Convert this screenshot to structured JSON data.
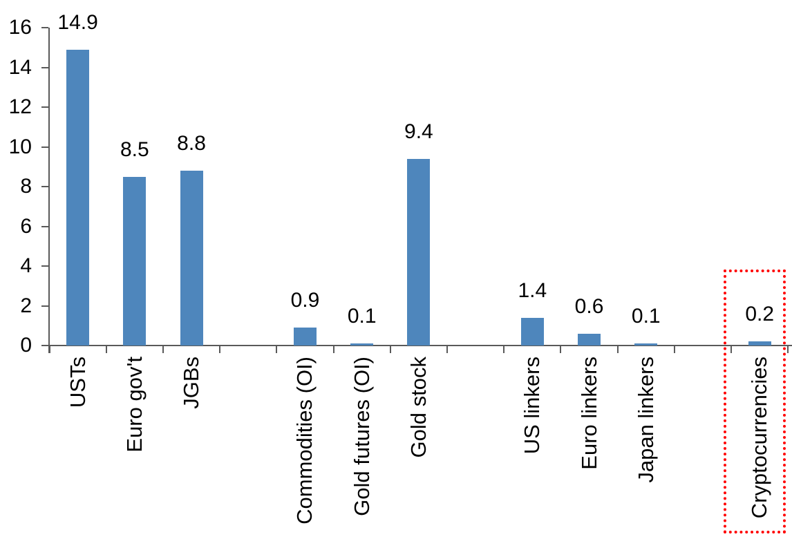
{
  "chart_data": {
    "type": "bar",
    "title": "",
    "xlabel": "",
    "ylabel": "",
    "categories": [
      "USTs",
      "Euro gov't",
      "JGBs",
      "Commodities (OI)",
      "Gold futures (OI)",
      "Gold stock",
      "US linkers",
      "Euro linkers",
      "Japan linkers",
      "Cryptocurrencies"
    ],
    "values": [
      14.9,
      8.5,
      8.8,
      0.9,
      0.1,
      9.4,
      1.4,
      0.6,
      0.1,
      0.2
    ],
    "data_labels": [
      "14.9",
      "8.5",
      "8.8",
      "0.9",
      "0.1",
      "9.4",
      "1.4",
      "0.6",
      "0.1",
      "0.2"
    ],
    "group_gaps_after": [
      "JGBs",
      "Gold stock",
      "Japan linkers"
    ],
    "y_ticks": [
      0,
      2,
      4,
      6,
      8,
      10,
      12,
      14,
      16
    ],
    "ylim": [
      0,
      16
    ],
    "grid": false,
    "legend": false,
    "bar_color": "#4E86BC",
    "axis_color": "#595959",
    "label_color": "#000000",
    "highlight": {
      "category": "Cryptocurrencies",
      "box_color": "#FF0000",
      "box_style": "dotted"
    }
  }
}
